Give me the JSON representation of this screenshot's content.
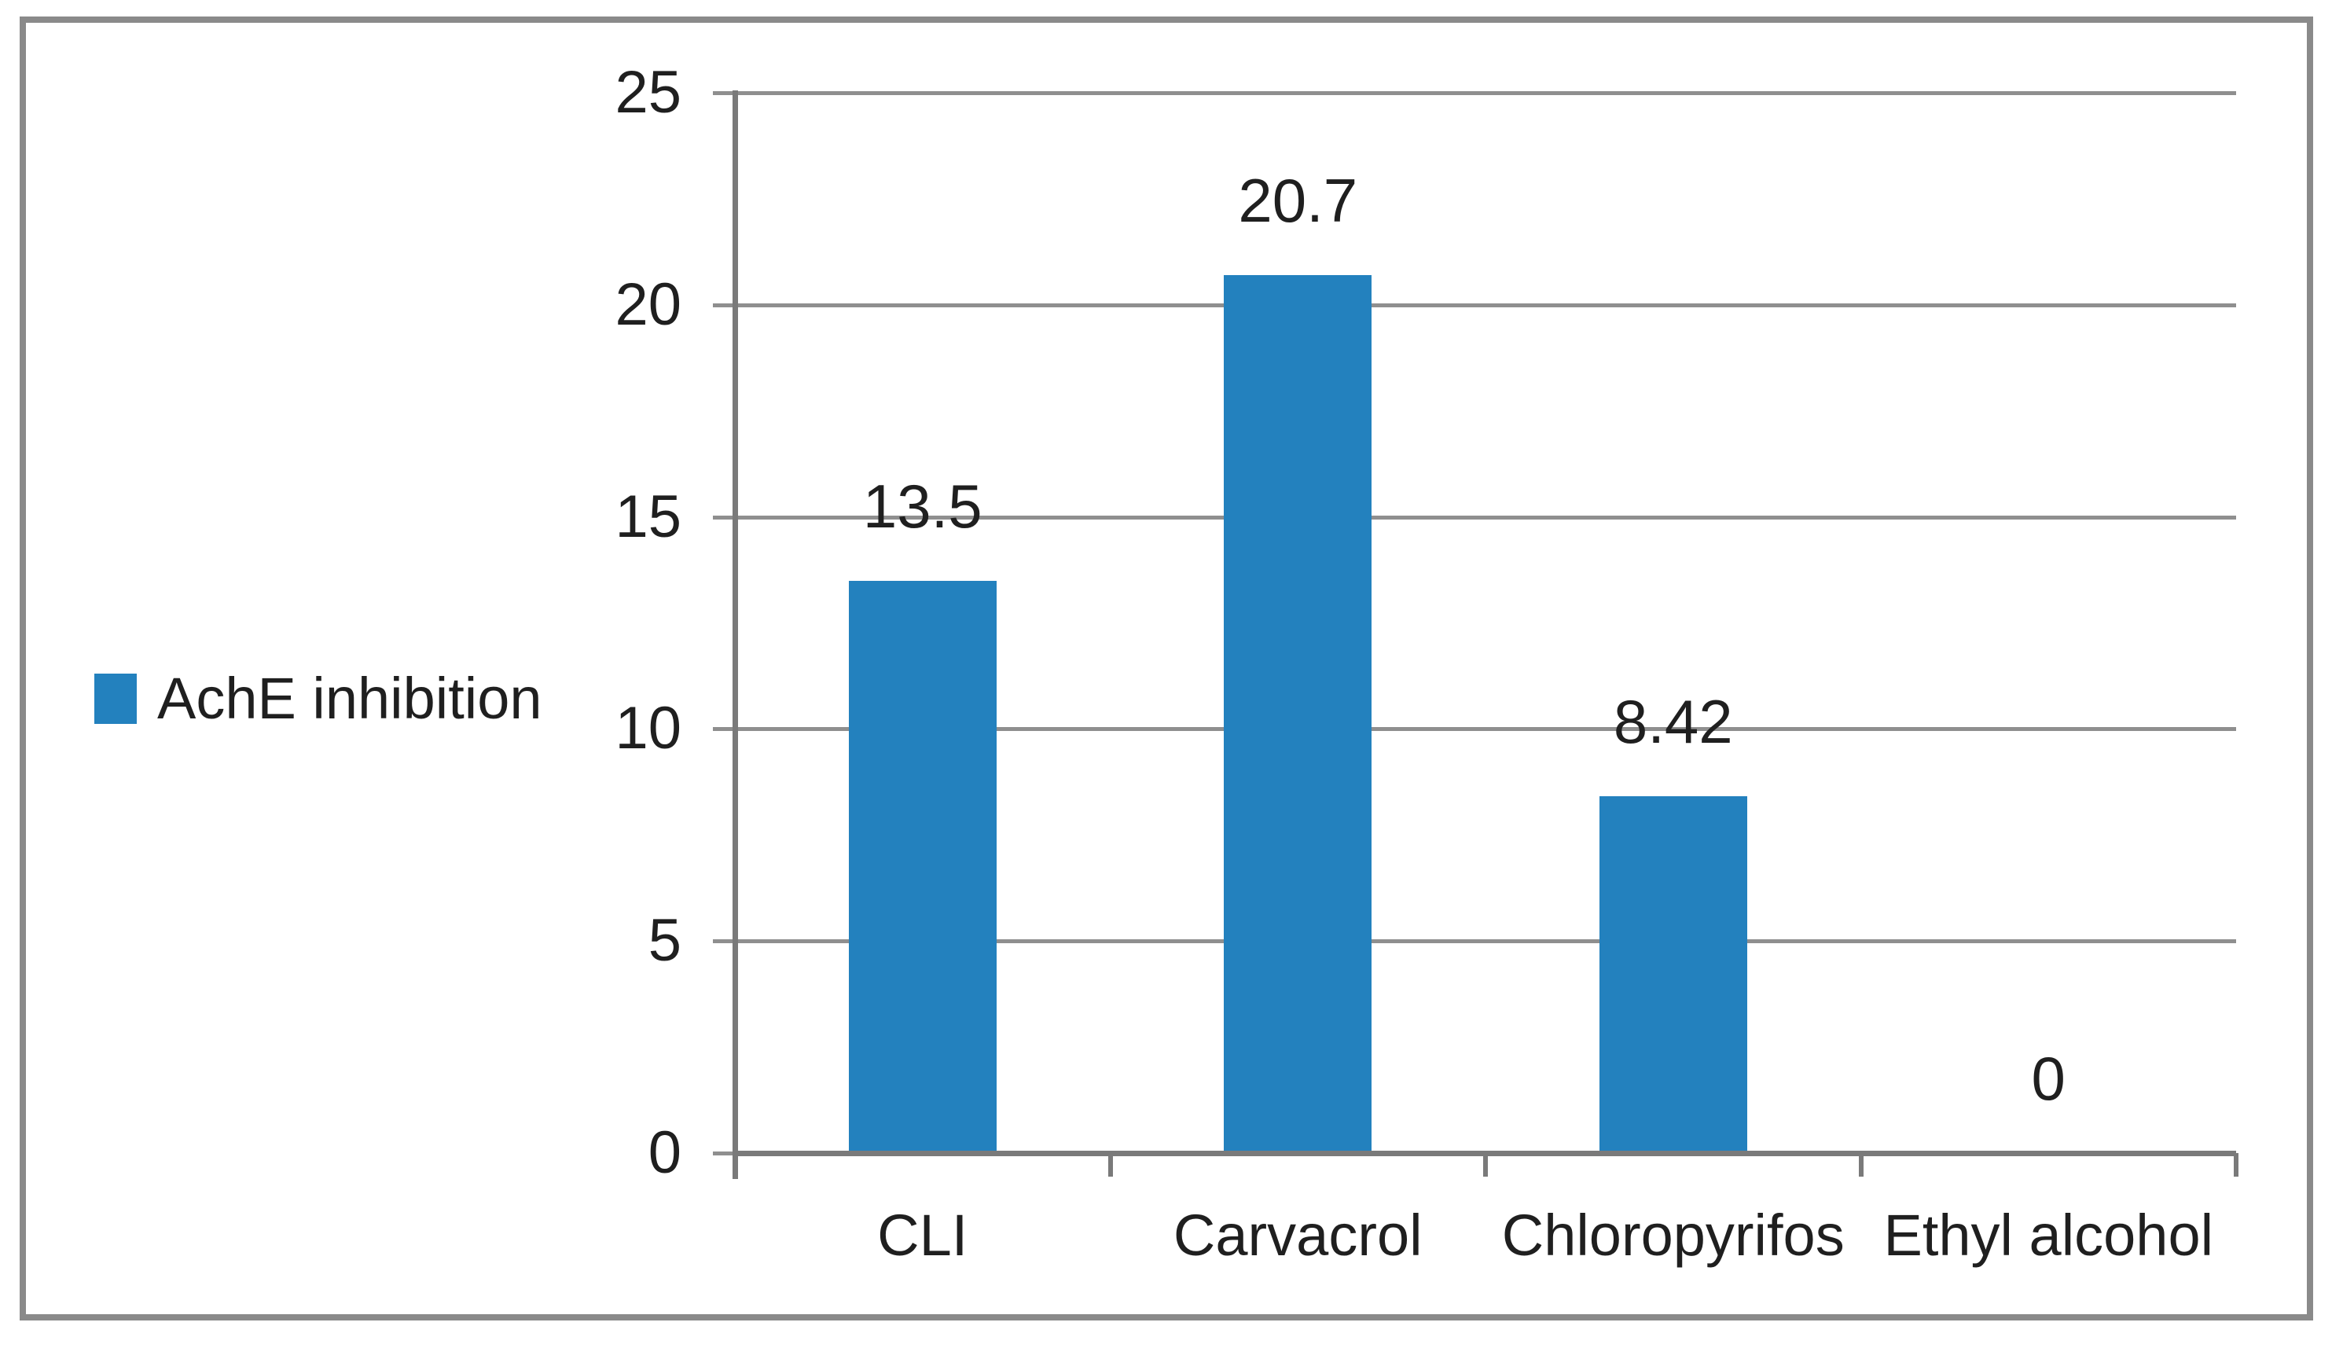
{
  "colors": {
    "bar": "#2381BE",
    "grid": "#8F8F8F",
    "axis": "#7A7A7A",
    "border": "#8A8A8A",
    "text": "#1F1F1F",
    "background": "#FFFFFF"
  },
  "legend": {
    "label": "AchE inhibition",
    "position": "left-middle"
  },
  "chart_data": {
    "type": "bar",
    "title": "",
    "xlabel": "",
    "ylabel": "",
    "categories": [
      "CLI",
      "Carvacrol",
      "Chloropyrifos",
      "Ethyl alcohol"
    ],
    "series": [
      {
        "name": "AchE inhibition",
        "values": [
          13.5,
          20.7,
          8.42,
          0
        ],
        "value_labels": [
          "13.5",
          "20.7",
          "8.42",
          "0"
        ]
      }
    ],
    "ylim": [
      0,
      25
    ],
    "yticks": [
      0,
      5,
      10,
      15,
      20,
      25
    ],
    "ytick_labels": [
      "0",
      "5",
      "10",
      "15",
      "20",
      "25"
    ],
    "grid": true,
    "legend_position": "left"
  }
}
